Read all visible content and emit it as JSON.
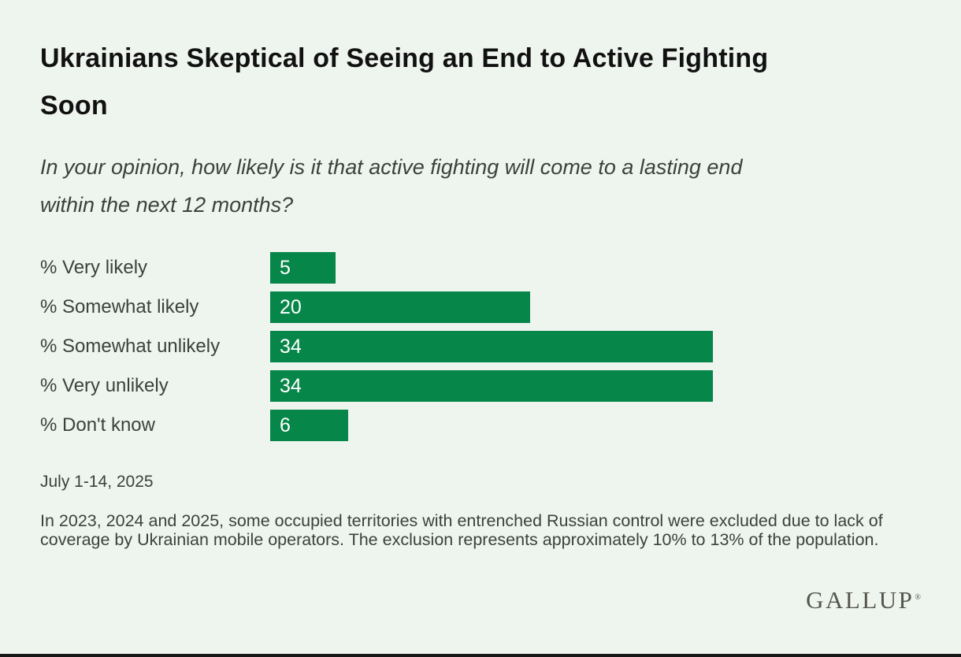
{
  "page": {
    "title_line1": "Ukrainians Skeptical of Seeing an End to Active Fighting",
    "title_line2": "Soon",
    "subtitle_line1": "In your opinion, how likely is it that active fighting will come to a lasting end",
    "subtitle_line2": "within the next 12 months?",
    "date_label": "July 1-14, 2025",
    "footnote": "In 2023, 2024 and 2025, some occupied territories with entrenched Russian control were excluded due to lack of coverage by Ukrainian mobile operators. The exclusion represents approximately 10% to 13% of the population.",
    "logo_text": "GALLUP",
    "logo_registered_mark": "®"
  },
  "colors": {
    "background": "#eef4ee",
    "bar_green": "#078649",
    "bar_value_text": "#ffffff",
    "title_text": "#111111",
    "body_text": "#3c413d",
    "logo_text": "#55564e",
    "bottom_rule": "#161616"
  },
  "chart_data": {
    "type": "bar",
    "orientation": "horizontal",
    "title": "Ukrainians Skeptical of Seeing an End to Active Fighting Soon",
    "subtitle": "In your opinion, how likely is it that active fighting will come to a lasting end within the next 12 months?",
    "categories": [
      "% Very likely",
      "% Somewhat likely",
      "% Somewhat unlikely",
      "% Very unlikely",
      "% Don't know"
    ],
    "values": [
      5,
      20,
      34,
      34,
      6
    ],
    "xlim": [
      0,
      50
    ],
    "value_labels": "inside-bar-left",
    "axis_visible": false,
    "grid": false,
    "legend": false,
    "source_date": "July 1-14, 2025"
  }
}
